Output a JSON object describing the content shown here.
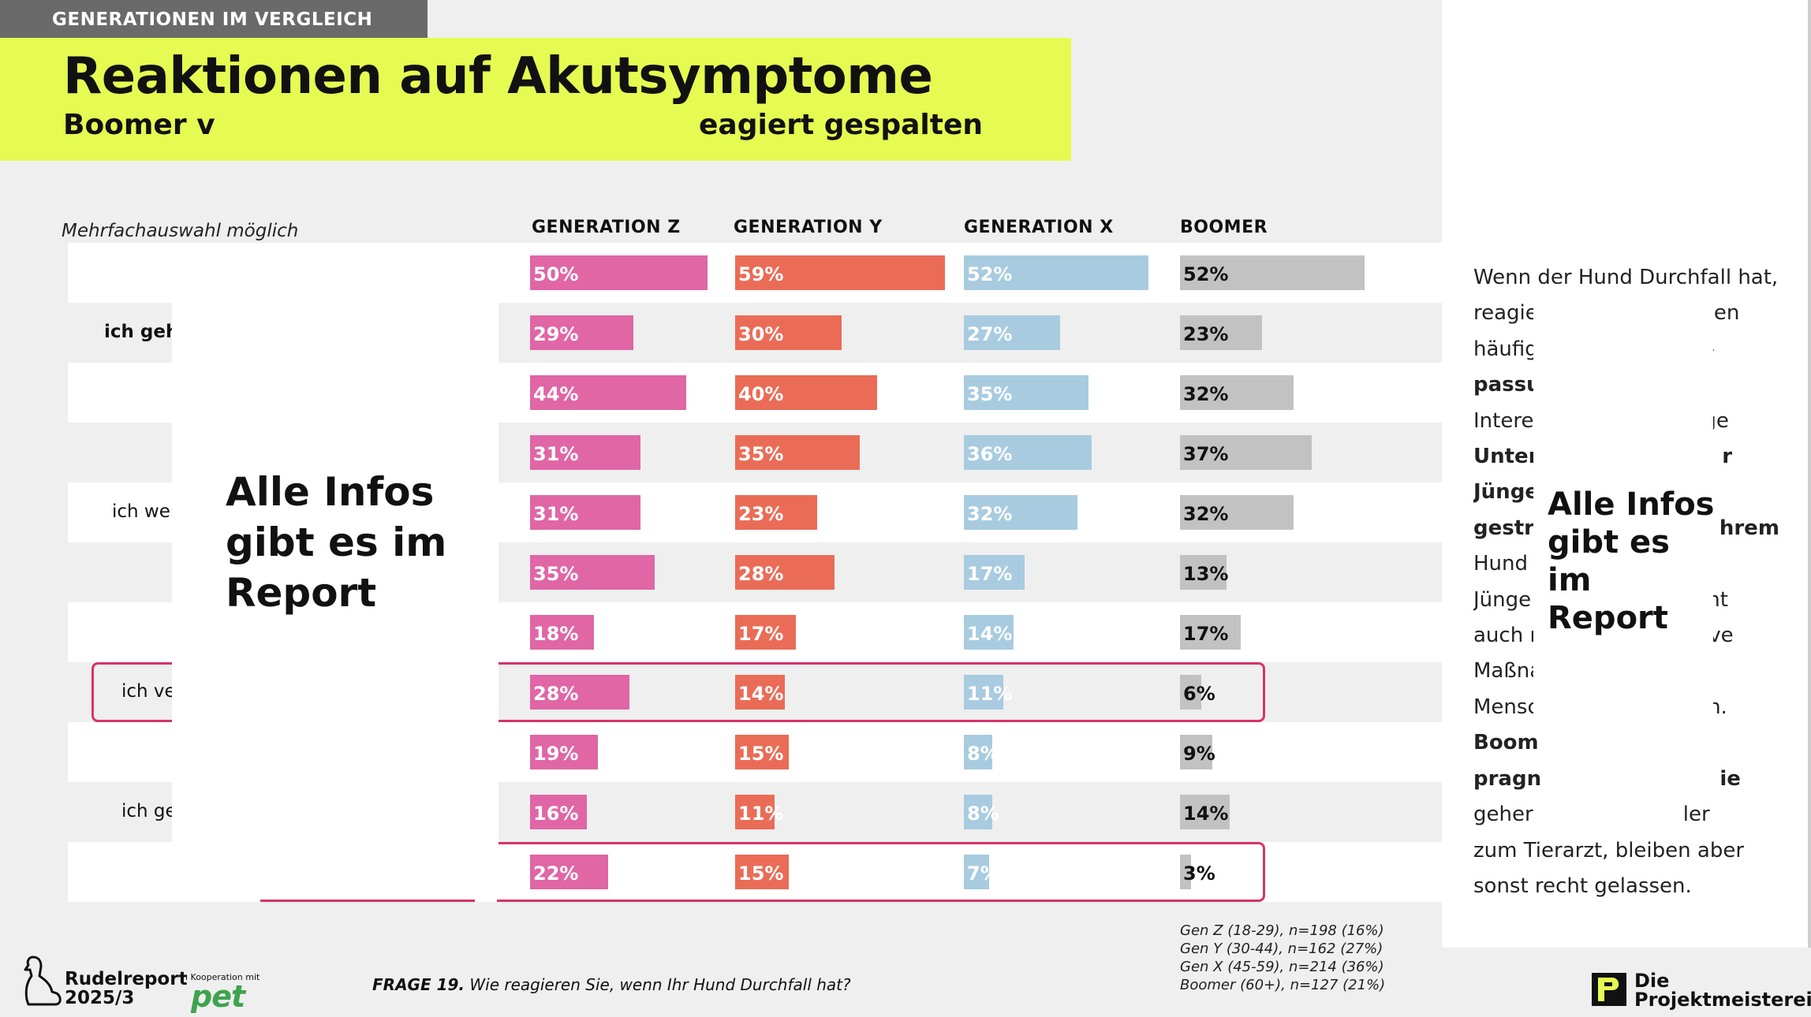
{
  "header": {
    "tag": "GENERATIONEN IM VERGLEICH",
    "title": "Reaktionen auf Akutsymptome",
    "subtitle_left": "Boomer v",
    "subtitle_right": "eagiert gespalten"
  },
  "colors": {
    "banner": "#e5fb52",
    "gen_z": "#e066a6",
    "gen_y": "#ea6c57",
    "gen_x": "#a8cbe0",
    "boomer": "#c2c2c2",
    "highlight": "#d6336c"
  },
  "note": "Mehrfachauswahl möglich",
  "row_labels": [
    "",
    "ich geh",
    "",
    "",
    "ich wer",
    "",
    "",
    "ich ve",
    "",
    "ich ge",
    ""
  ],
  "bold_rows": [
    1
  ],
  "highlight_rows": [
    7,
    10
  ],
  "chart_data": {
    "type": "bar",
    "orientation": "horizontal",
    "title": "Reaktionen auf Akutsymptome",
    "categories": [
      "1",
      "2",
      "3",
      "4",
      "5",
      "6",
      "7",
      "8",
      "9",
      "10",
      "11"
    ],
    "unit": "%",
    "xlim": [
      0,
      100
    ],
    "series": [
      {
        "name": "GENERATION Z",
        "values": [
          50,
          29,
          44,
          31,
          31,
          35,
          18,
          28,
          19,
          16,
          22
        ],
        "labels": [
          "50%",
          "29%",
          "44%",
          "31%",
          "31%",
          "35%",
          "18%",
          "28%",
          "19%",
          "16%",
          "22%"
        ]
      },
      {
        "name": "GENERATION Y",
        "values": [
          59,
          30,
          40,
          35,
          23,
          28,
          17,
          14,
          15,
          11,
          15
        ],
        "labels": [
          "59%",
          "30%",
          "40%",
          "35%",
          "23%",
          "28%",
          "17%",
          "14%",
          "15%",
          "11%",
          "15%"
        ]
      },
      {
        "name": "GENERATION X",
        "values": [
          52,
          27,
          35,
          36,
          32,
          17,
          14,
          11,
          8,
          8,
          7
        ],
        "labels": [
          "52%",
          "27%",
          "35%",
          "36%",
          "32%",
          "17%",
          "14%",
          "11%",
          "8%",
          "8%",
          "7%"
        ]
      },
      {
        "name": "BOOMER",
        "values": [
          52,
          23,
          32,
          37,
          32,
          13,
          17,
          6,
          9,
          14,
          3
        ],
        "labels": [
          "52%",
          "23%",
          "32%",
          "37%",
          "32%",
          "13%",
          "17%",
          "6%",
          "9%",
          "14%",
          "3%"
        ]
      }
    ]
  },
  "overlay": {
    "left": "Alle Infos gibt es im Report",
    "right": "Alle Infos gibt es im Report"
  },
  "right_text": [
    "Wenn der Hund Durchfall hat,",
    "reagie                         pen",
    "häufig                          -",
    "passu",
    "Intere                          ge",
    "Unters                        r",
    "Jünge",
    "gestre                        hrem",
    "Hund",
    "Jünge                        amt",
    "auch r                      ssive",
    "Maßna",
    "Mensc                      gen.",
    "Boom",
    "pragn                         ie",
    "geher                       ler",
    "zum Tierarzt, bleiben aber",
    "sonst recht gelassen."
  ],
  "footer": {
    "logo_line1": "Rudelreport",
    "logo_line2": "2025/3",
    "coop": "in Kooperation mit",
    "pet": "pet",
    "question_label": "FRAGE 19.",
    "question": "Wie reagieren Sie, wenn Ihr Hund Durchfall hat?",
    "samples": [
      "Gen Z (18-29), n=198 (16%)",
      "Gen Y (30-44), n=162 (27%)",
      "Gen X (45-59), n=214 (36%)",
      "Boomer (60+), n=127 (21%)"
    ],
    "brand_line1": "Die",
    "brand_line2": "Projektmeisterei"
  }
}
